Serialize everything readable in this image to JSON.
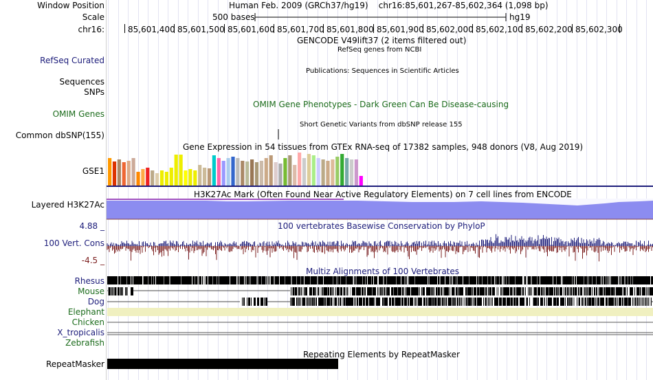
{
  "header": {
    "window_position_label": "Window Position",
    "window_position_value": "Human Feb. 2009 (GRCh37/hg19)    chr16:85,601,267-85,602,364 (1,098 bp)",
    "scale_label": "Scale",
    "scale_text": "500 bases",
    "assembly": "hg19",
    "chrom_label": "chr16:",
    "ticks": [
      "85,601,400",
      "85,601,500",
      "85,601,600",
      "85,601,700",
      "85,601,800",
      "85,601,900",
      "85,602,000",
      "85,602,100",
      "85,602,200",
      "85,602,300"
    ]
  },
  "tracks": {
    "gencode_title": "GENCODE V49lift37 (2 items filtered out)",
    "refseq_label": "RefSeq Curated",
    "refseq_title": "RefSeq genes from NCBI",
    "pubs_title": "Publications: Sequences in Scientific Articles",
    "sequences_label": "Sequences",
    "snps_label": "SNPs",
    "omim_label": "OMIM Genes",
    "omim_title": "OMIM Gene Phenotypes - Dark Green Can Be Disease-causing",
    "dbsnp_label": "Common dbSNP(155)",
    "dbsnp_title": "Short Genetic Variants from dbSNP release 155",
    "gtex_title": "Gene Expression in 54 tissues from GTEx RNA-seq of 17382 samples, 948 donors (V8, Aug 2019)",
    "gtex_label": "GSE1",
    "h3k27ac_label": "Layered H3K27Ac",
    "h3k27ac_title": "H3K27Ac Mark (Often Found Near Active Regulatory Elements) on 7 cell lines from ENCODE",
    "phylop_max": "4.88 _",
    "phylop_label": "100 Vert. Cons",
    "phylop_min": "-4.5 _",
    "phylop_title": "100 vertebrates Basewise Conservation by PhyloP",
    "multiz_title": "Multiz Alignments of 100 Vertebrates",
    "species": [
      "Rhesus",
      "Mouse",
      "Dog",
      "Elephant",
      "Chicken",
      "X_tropicalis",
      "Zebrafish"
    ],
    "repeat_title": "Repeating Elements by RepeatMasker",
    "repeat_label": "RepeatMasker"
  },
  "colors": {
    "label_blue": "#1c1c7a",
    "label_green": "#1b6b1b",
    "h3k27ac_fill": "#8c8cf0",
    "phylop_pos": "#1c1c7a",
    "phylop_neg": "#7a1c1c",
    "elephant": "#f0f0c0"
  },
  "gtex_colors": [
    "#ff9900",
    "#dd3300",
    "#aa8866",
    "#ee6633",
    "#ddaa88",
    "#ccaa99",
    "#ff8800",
    "#ffaa44",
    "#ee2222",
    "#bbaa88",
    "#ddccaa",
    "#eeee00",
    "#eeee00",
    "#eeee00",
    "#eeee00",
    "#eeee00",
    "#ffff00",
    "#eeee00",
    "#eeee00",
    "#ccbb99",
    "#ccbb99",
    "#bb9977",
    "#00cccc",
    "#ff66aa",
    "#9999ff",
    "#aaccee",
    "#3366cc",
    "#bbbbbb",
    "#aa8866",
    "#bbbb99",
    "#997755",
    "#aa9977",
    "#ccbbaa",
    "#ccaa88",
    "#bb9977",
    "#ddcccc",
    "#aaaaaa",
    "#77bb33",
    "#aa9977",
    "#ddbbaa",
    "#ffaaaa",
    "#cccccc",
    "#ddcc99",
    "#aaee88",
    "#ccccff",
    "#bbaa88",
    "#ccaa88",
    "#ddbb99",
    "#99cc66",
    "#33aa33",
    "#77aaaa",
    "#cccccc",
    "#cc99cc",
    "#ff00ff"
  ],
  "gtex_heights": [
    40,
    35,
    38,
    34,
    36,
    40,
    20,
    24,
    26,
    22,
    18,
    22,
    20,
    26,
    45,
    45,
    22,
    24,
    22,
    30,
    26,
    25,
    44,
    40,
    36,
    40,
    42,
    40,
    36,
    35,
    38,
    34,
    36,
    40,
    44,
    34,
    32,
    40,
    44,
    30,
    48,
    40,
    46,
    44,
    40,
    38,
    36,
    38,
    42,
    46,
    40,
    38,
    38,
    14
  ]
}
